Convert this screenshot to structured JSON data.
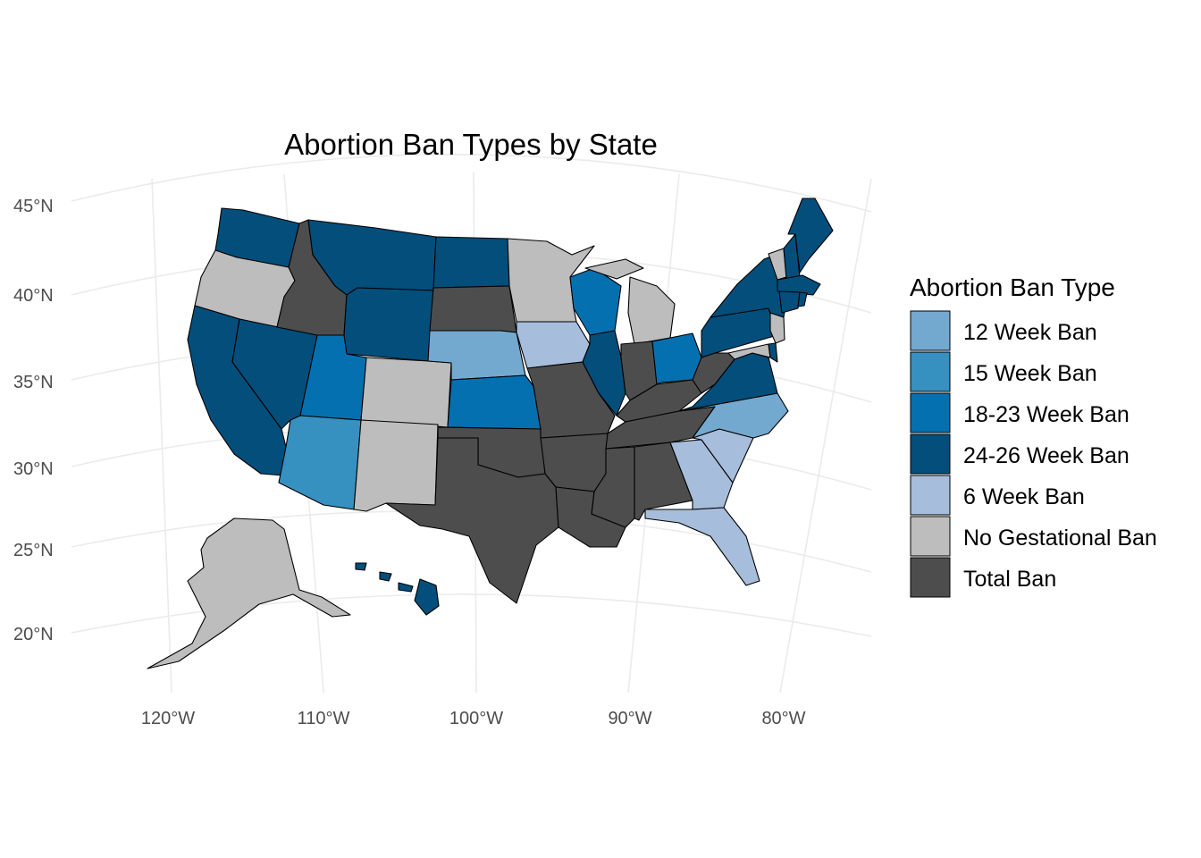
{
  "title": "Abortion Ban Types by State",
  "axes": {
    "x_ticks": [
      "120°W",
      "110°W",
      "100°W",
      "90°W",
      "80°W"
    ],
    "y_ticks": [
      "45°N",
      "40°N",
      "35°N",
      "30°N",
      "25°N",
      "20°N"
    ]
  },
  "legend": {
    "title": "Abortion Ban Type",
    "placement": "right",
    "items": [
      {
        "label": "12 Week Ban",
        "color": "#74a9cf"
      },
      {
        "label": "15 Week Ban",
        "color": "#3690c0"
      },
      {
        "label": "18-23 Week Ban",
        "color": "#0570b0"
      },
      {
        "label": "24-26 Week Ban",
        "color": "#034e7b"
      },
      {
        "label": "6 Week Ban",
        "color": "#a6bddb"
      },
      {
        "label": "No Gestational Ban",
        "color": "#bdbdbd"
      },
      {
        "label": "Total Ban",
        "color": "#4d4d4d"
      }
    ]
  },
  "map_data": {
    "regions": [
      {
        "state": "Washington",
        "category": "24-26 Week Ban"
      },
      {
        "state": "Oregon",
        "category": "No Gestational Ban"
      },
      {
        "state": "California",
        "category": "24-26 Week Ban"
      },
      {
        "state": "Nevada",
        "category": "24-26 Week Ban"
      },
      {
        "state": "Idaho",
        "category": "Total Ban"
      },
      {
        "state": "Montana",
        "category": "24-26 Week Ban"
      },
      {
        "state": "Wyoming",
        "category": "24-26 Week Ban"
      },
      {
        "state": "Utah",
        "category": "18-23 Week Ban"
      },
      {
        "state": "Arizona",
        "category": "15 Week Ban"
      },
      {
        "state": "Colorado",
        "category": "No Gestational Ban"
      },
      {
        "state": "New Mexico",
        "category": "No Gestational Ban"
      },
      {
        "state": "North Dakota",
        "category": "24-26 Week Ban"
      },
      {
        "state": "South Dakota",
        "category": "Total Ban"
      },
      {
        "state": "Nebraska",
        "category": "12 Week Ban"
      },
      {
        "state": "Kansas",
        "category": "18-23 Week Ban"
      },
      {
        "state": "Oklahoma",
        "category": "Total Ban"
      },
      {
        "state": "Texas",
        "category": "Total Ban"
      },
      {
        "state": "Minnesota",
        "category": "No Gestational Ban"
      },
      {
        "state": "Iowa",
        "category": "6 Week Ban"
      },
      {
        "state": "Missouri",
        "category": "Total Ban"
      },
      {
        "state": "Arkansas",
        "category": "Total Ban"
      },
      {
        "state": "Louisiana",
        "category": "Total Ban"
      },
      {
        "state": "Wisconsin",
        "category": "18-23 Week Ban"
      },
      {
        "state": "Illinois",
        "category": "24-26 Week Ban"
      },
      {
        "state": "Michigan",
        "category": "No Gestational Ban"
      },
      {
        "state": "Indiana",
        "category": "Total Ban"
      },
      {
        "state": "Ohio",
        "category": "18-23 Week Ban"
      },
      {
        "state": "Kentucky",
        "category": "Total Ban"
      },
      {
        "state": "Tennessee",
        "category": "Total Ban"
      },
      {
        "state": "Mississippi",
        "category": "Total Ban"
      },
      {
        "state": "Alabama",
        "category": "Total Ban"
      },
      {
        "state": "Georgia",
        "category": "6 Week Ban"
      },
      {
        "state": "Florida",
        "category": "6 Week Ban"
      },
      {
        "state": "South Carolina",
        "category": "6 Week Ban"
      },
      {
        "state": "North Carolina",
        "category": "12 Week Ban"
      },
      {
        "state": "Virginia",
        "category": "24-26 Week Ban"
      },
      {
        "state": "West Virginia",
        "category": "Total Ban"
      },
      {
        "state": "Pennsylvania",
        "category": "24-26 Week Ban"
      },
      {
        "state": "New York",
        "category": "24-26 Week Ban"
      },
      {
        "state": "New Jersey",
        "category": "No Gestational Ban"
      },
      {
        "state": "Maryland",
        "category": "No Gestational Ban"
      },
      {
        "state": "Delaware",
        "category": "24-26 Week Ban"
      },
      {
        "state": "Vermont",
        "category": "No Gestational Ban"
      },
      {
        "state": "New Hampshire",
        "category": "24-26 Week Ban"
      },
      {
        "state": "Maine",
        "category": "24-26 Week Ban"
      },
      {
        "state": "Massachusetts",
        "category": "24-26 Week Ban"
      },
      {
        "state": "Connecticut",
        "category": "24-26 Week Ban"
      },
      {
        "state": "Rhode Island",
        "category": "24-26 Week Ban"
      },
      {
        "state": "Alaska",
        "category": "No Gestational Ban"
      },
      {
        "state": "Hawaii",
        "category": "24-26 Week Ban"
      }
    ]
  }
}
